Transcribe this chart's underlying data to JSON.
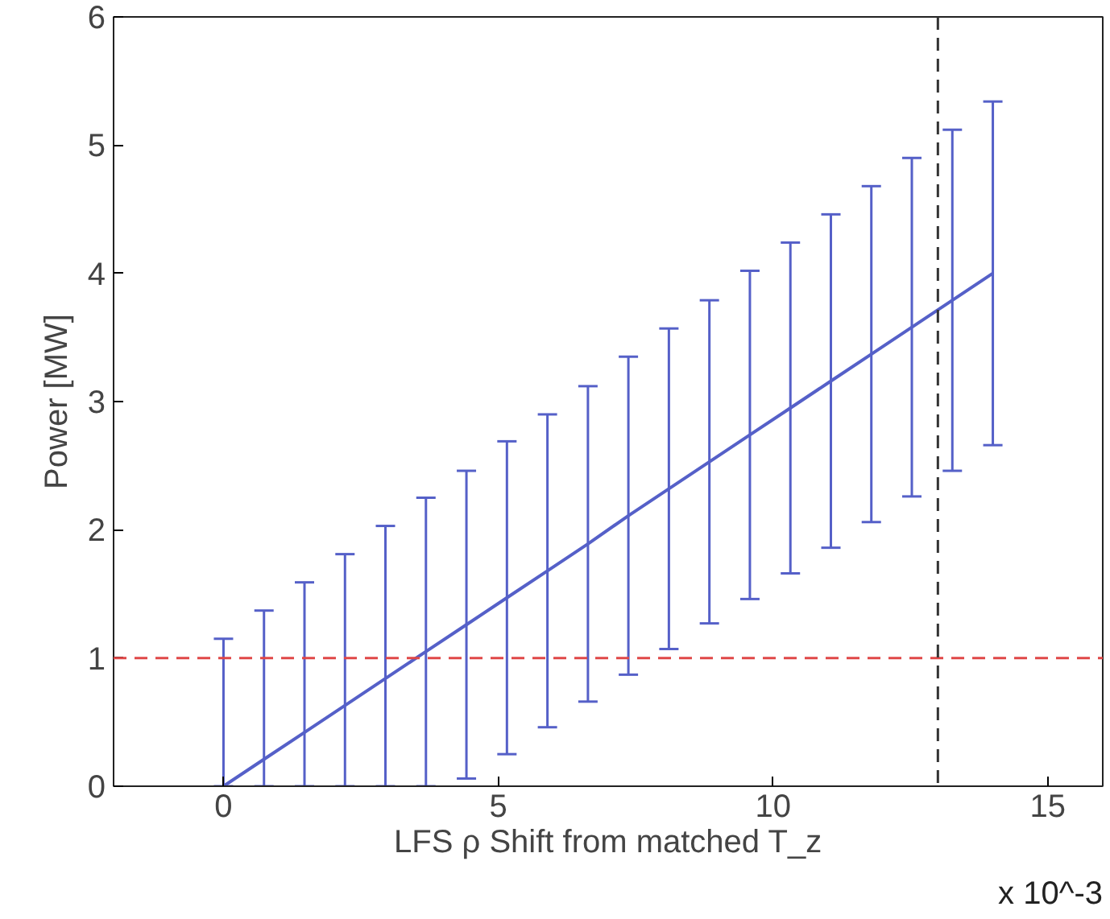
{
  "chart_data": {
    "type": "line",
    "xlabel": "LFS ρ Shift from matched T_z",
    "ylabel": "Power [MW]",
    "annotations": [
      "x 10^-3"
    ],
    "x": [
      0,
      0.737,
      1.474,
      2.211,
      2.947,
      3.684,
      4.421,
      5.158,
      5.895,
      6.632,
      7.368,
      8.105,
      8.842,
      9.579,
      10.316,
      11.053,
      11.789,
      12.526,
      13.263,
      14
    ],
    "series": [
      {
        "color": "#5560c8",
        "values": [
          0,
          0.21,
          0.42,
          0.63,
          0.84,
          1.05,
          1.26,
          1.47,
          1.68,
          1.89,
          2.11,
          2.32,
          2.53,
          2.74,
          2.95,
          3.16,
          3.37,
          3.58,
          3.79,
          4.0
        ],
        "errors": [
          [
            0,
            1.15
          ],
          [
            0,
            1.37
          ],
          [
            0,
            1.59
          ],
          [
            0,
            1.81
          ],
          [
            0,
            2.03
          ],
          [
            0,
            2.25
          ],
          1.2,
          1.22,
          1.22,
          1.23,
          1.24,
          1.25,
          1.26,
          1.28,
          1.29,
          1.3,
          1.31,
          1.32,
          1.33,
          1.34
        ]
      }
    ],
    "xlim": [
      -2,
      16
    ],
    "ylim": [
      0,
      6
    ],
    "xticks": [
      0,
      5,
      10,
      15
    ],
    "yticks": [
      0,
      1,
      2,
      3,
      4,
      5,
      6
    ],
    "ref_lines": [
      {
        "axis": "y",
        "value": 1,
        "color": "#e04848",
        "line_style": "dashed"
      },
      {
        "axis": "x",
        "value": 13,
        "color": "#333333",
        "line_style": "dashed"
      }
    ],
    "grid": false,
    "line_style": "solid",
    "marker": "none"
  }
}
